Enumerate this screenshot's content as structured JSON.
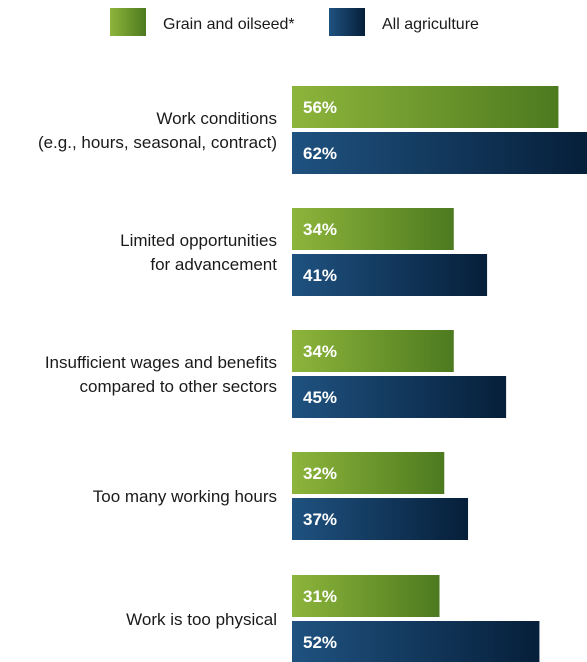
{
  "colors": {
    "grain_light": "#8db53b",
    "grain_dark": "#4d7a1f",
    "ag_light": "#1f5280",
    "ag_dark": "#061f3a"
  },
  "legend": [
    {
      "name": "Grain and oilseed*",
      "color_key": "grain"
    },
    {
      "name": "All agriculture",
      "color_key": "ag"
    }
  ],
  "chart_data": {
    "type": "bar",
    "orientation": "horizontal",
    "xlim": [
      0,
      62
    ],
    "categories": [
      [
        "Work conditions",
        "(e.g., hours, seasonal, contract)"
      ],
      [
        "Limited opportunities",
        "for advancement"
      ],
      [
        "Insufficient wages and benefits",
        "compared to other sectors"
      ],
      [
        "Too many working hours"
      ],
      [
        "Work is too physical"
      ]
    ],
    "series": [
      {
        "name": "Grain and oilseed*",
        "values": [
          56,
          34,
          34,
          32,
          31
        ],
        "labels": [
          "56%",
          "34%",
          "34%",
          "32%",
          "31%"
        ]
      },
      {
        "name": "All agriculture",
        "values": [
          62,
          41,
          45,
          37,
          52
        ],
        "labels": [
          "62%",
          "41%",
          "45%",
          "37%",
          "52%"
        ]
      }
    ],
    "legend_position": "top-center",
    "grid": false
  }
}
